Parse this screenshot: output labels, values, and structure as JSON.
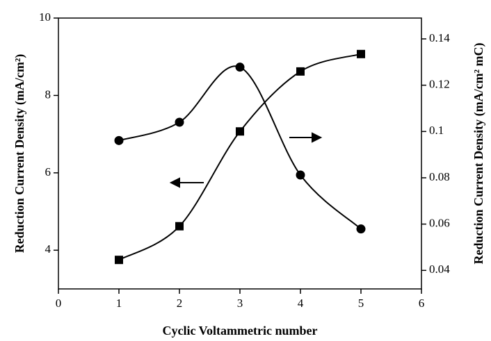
{
  "chart_data": {
    "type": "line",
    "x_label": "Cyclic Voltammetric number",
    "y_label": "Reduction Current Density (mA/cm²)",
    "y2_label": "Reduction Current Density (mA/cm² mC)",
    "x": [
      1,
      2,
      3,
      4,
      5
    ],
    "xlim": [
      0,
      6
    ],
    "xticks": [
      0,
      1,
      2,
      3,
      4,
      5,
      6
    ],
    "ylim": [
      3,
      10
    ],
    "yticks": [
      4,
      6,
      8,
      10
    ],
    "y2lim": [
      0.032,
      0.149
    ],
    "y2ticks": [
      0.04,
      0.06,
      0.08,
      0.1,
      0.12,
      0.14
    ],
    "series": [
      {
        "marker": "square",
        "color": "#000000",
        "values": [
          3.75,
          4.62,
          7.07,
          8.62,
          9.07
        ]
      },
      {
        "marker": "circle",
        "color": "#000000",
        "axis": "y2",
        "values": [
          0.0961,
          0.104,
          0.1278,
          0.0812,
          0.0579
        ]
      }
    ]
  }
}
